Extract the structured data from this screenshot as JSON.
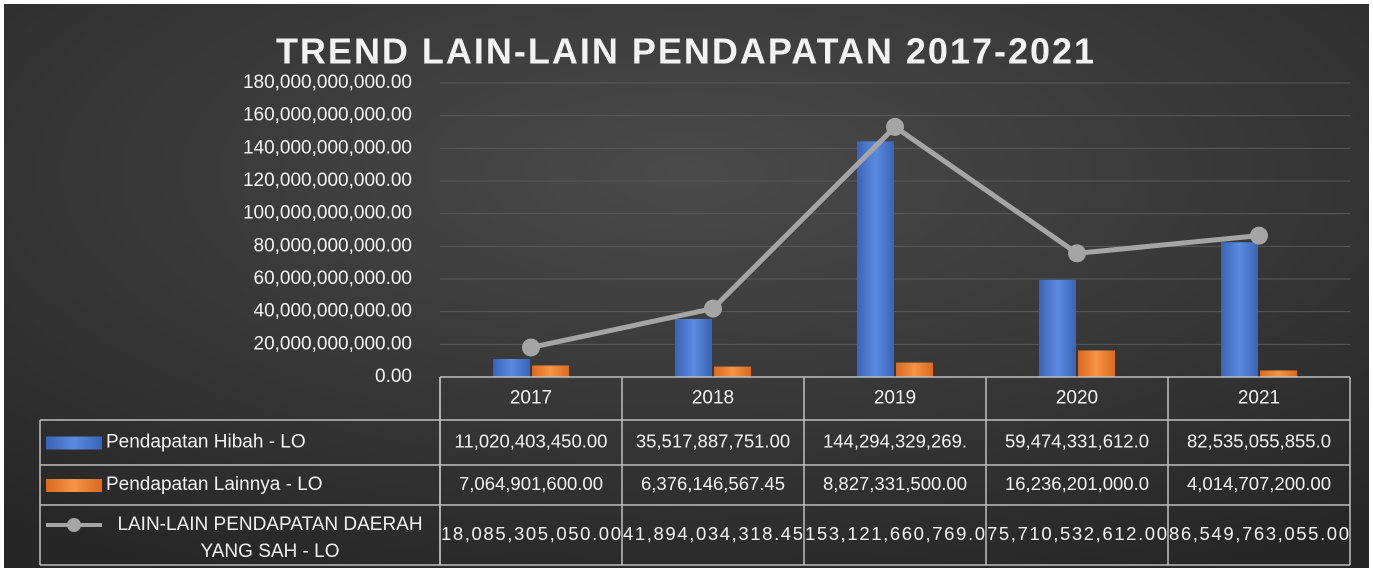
{
  "chart_data": {
    "type": "bar_line_table",
    "title": "TREND LAIN-LAIN PENDAPATAN 2017-2021",
    "categories": [
      "2017",
      "2018",
      "2019",
      "2020",
      "2021"
    ],
    "ylim": [
      0,
      180000000000
    ],
    "yticks": [
      {
        "value": 0,
        "label": "0.00"
      },
      {
        "value": 20000000000,
        "label": "20,000,000,000.00"
      },
      {
        "value": 40000000000,
        "label": "40,000,000,000.00"
      },
      {
        "value": 60000000000,
        "label": "60,000,000,000.00"
      },
      {
        "value": 80000000000,
        "label": "80,000,000,000.00"
      },
      {
        "value": 100000000000,
        "label": "100,000,000,000.00"
      },
      {
        "value": 120000000000,
        "label": "120,000,000,000.00"
      },
      {
        "value": 140000000000,
        "label": "140,000,000,000.00"
      },
      {
        "value": 160000000000,
        "label": "160,000,000,000.00"
      },
      {
        "value": 180000000000,
        "label": "180,000,000,000.00"
      }
    ],
    "grid": true,
    "series": [
      {
        "name": "Pendapatan Hibah - LO",
        "type": "bar",
        "color": "#4472c4",
        "values": [
          11020403450.0,
          35517887751.0,
          144294329269,
          59474331612,
          82535055855
        ],
        "value_labels": [
          "11,020,403,450.00",
          "35,517,887,751.00",
          "144,294,329,269.",
          "59,474,331,612.0",
          "82,535,055,855.0"
        ]
      },
      {
        "name": "Pendapatan Lainnya - LO",
        "type": "bar",
        "color": "#ed7d31",
        "values": [
          7064901600.0,
          6376146567.45,
          8827331500.0,
          16236201000,
          4014707200.0
        ],
        "value_labels": [
          "7,064,901,600.00",
          "6,376,146,567.45",
          "8,827,331,500.00",
          "16,236,201,000.0",
          "4,014,707,200.00"
        ]
      },
      {
        "name": "LAIN-LAIN PENDAPATAN DAERAH YANG SAH - LO",
        "type": "line",
        "color": "#a5a5a5",
        "values": [
          18085305050.0,
          41894034318.45,
          153121660769,
          75710532612.0,
          86549763055.0
        ],
        "value_labels": [
          "18,085,305,050.00",
          "41,894,034,318.45",
          "153,121,660,769.0",
          "75,710,532,612.00",
          "86,549,763,055.00"
        ]
      }
    ]
  }
}
